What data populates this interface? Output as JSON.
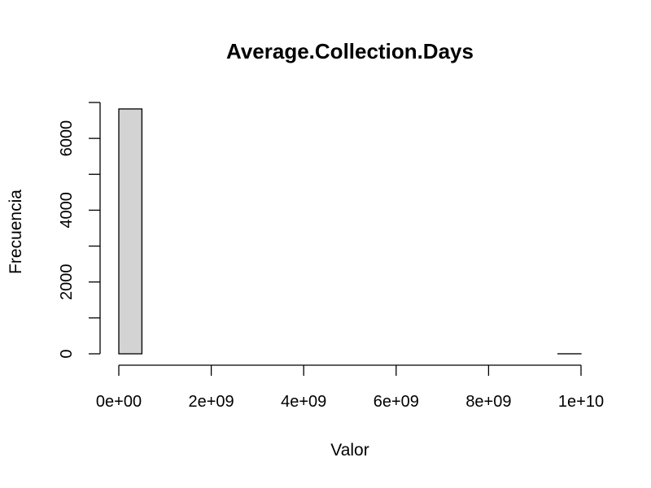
{
  "chart_data": {
    "type": "bar",
    "title": "Average.Collection.Days",
    "xlabel": "Valor",
    "ylabel": "Frecuencia",
    "bin_edges": [
      0,
      500000000,
      1000000000,
      1500000000,
      2000000000,
      2500000000,
      3000000000,
      3500000000,
      4000000000,
      4500000000,
      5000000000,
      5500000000,
      6000000000,
      6500000000,
      7000000000,
      7500000000,
      8000000000,
      8500000000,
      9000000000,
      9500000000,
      10000000000
    ],
    "values": [
      6820,
      0,
      0,
      0,
      0,
      0,
      0,
      0,
      0,
      0,
      0,
      0,
      0,
      0,
      0,
      0,
      0,
      0,
      0,
      1
    ],
    "xlim": [
      0,
      10000000000
    ],
    "ylim": [
      0,
      7000
    ],
    "x_ticks": [
      0,
      2000000000,
      4000000000,
      6000000000,
      8000000000,
      10000000000
    ],
    "x_tick_labels": [
      "0e+00",
      "2e+09",
      "4e+09",
      "6e+09",
      "8e+09",
      "1e+10"
    ],
    "y_ticks": [
      0,
      1000,
      2000,
      3000,
      4000,
      5000,
      6000,
      7000
    ],
    "y_tick_labels": [
      "0",
      "",
      "2000",
      "",
      "4000",
      "",
      "6000",
      ""
    ],
    "bar_color": "#d3d3d3",
    "grid": false
  }
}
